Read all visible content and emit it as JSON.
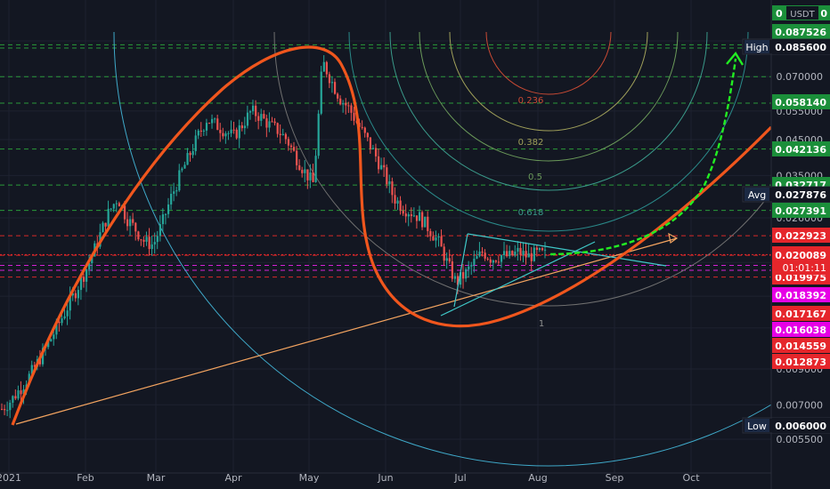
{
  "chart_data": {
    "type": "candlestick",
    "currency": "USDT",
    "y_scale": "log",
    "ylim": [
      0.0056,
      0.107
    ],
    "y_ticks": [
      "0.090000",
      "0.070000",
      "0.055000",
      "0.045000",
      "0.035000",
      "0.026000",
      "0.019000",
      "0.015000",
      "0.012000",
      "0.009000",
      "0.007000",
      "0.005500"
    ],
    "x_ticks": [
      "2021",
      "Feb",
      "Mar",
      "Apr",
      "May",
      "Jun",
      "Jul",
      "Aug",
      "Sep",
      "Oct"
    ],
    "hlines_green": [
      0.087526,
      0.0856,
      0.07,
      0.05814,
      0.042136,
      0.032717,
      0.027391
    ],
    "hlines_red": [
      0.022923,
      0.01999,
      0.01716
    ],
    "hlines_magenta": [
      0.01862,
      0.01799
    ],
    "price_labels": [
      {
        "text": "0.087526",
        "color": "#1b8f3a"
      },
      {
        "text": "0.058140",
        "color": "#1b8f3a"
      },
      {
        "text": "0.042136",
        "color": "#1b8f3a"
      },
      {
        "text": "0.032717",
        "color": "#1b8f3a"
      },
      {
        "text": "0.027391",
        "color": "#1b8f3a"
      },
      {
        "text": "0.022923",
        "color": "#e5262b"
      },
      {
        "text": "0.019975",
        "color": "#e5262b"
      },
      {
        "text": "0.018392",
        "color": "#e600e6"
      },
      {
        "text": "0.017167",
        "color": "#e5262b"
      },
      {
        "text": "0.016038",
        "color": "#e600e6"
      },
      {
        "text": "0.014559",
        "color": "#e5262b"
      },
      {
        "text": "0.012873",
        "color": "#e5262b"
      }
    ],
    "high": {
      "label": "High",
      "value": "0.085600"
    },
    "avg": {
      "label": "Avg",
      "value": "0.027876"
    },
    "low": {
      "label": "Low",
      "value": "0.006000"
    },
    "last": {
      "value": "0.020089",
      "countdown": "01:01:11"
    },
    "top_partial": {
      "value": "0",
      "unit": "USDT",
      "right": "0"
    },
    "fib_labels": [
      "0.236",
      "0.382",
      "0.5",
      "0.618",
      "1"
    ],
    "close_series": [
      0.0068,
      0.0072,
      0.0078,
      0.0085,
      0.0094,
      0.0105,
      0.0118,
      0.0133,
      0.015,
      0.017,
      0.0195,
      0.023,
      0.027,
      0.03,
      0.026,
      0.024,
      0.022,
      0.0215,
      0.025,
      0.03,
      0.035,
      0.04,
      0.046,
      0.052,
      0.05,
      0.048,
      0.046,
      0.05,
      0.055,
      0.053,
      0.05,
      0.048,
      0.045,
      0.04,
      0.036,
      0.033,
      0.078,
      0.068,
      0.06,
      0.056,
      0.05,
      0.045,
      0.04,
      0.035,
      0.03,
      0.028,
      0.027,
      0.026,
      0.024,
      0.022,
      0.019,
      0.0165,
      0.0175,
      0.019,
      0.0205,
      0.0195,
      0.02,
      0.0198,
      0.0205,
      0.0198,
      0.0202,
      0.0201
    ]
  }
}
